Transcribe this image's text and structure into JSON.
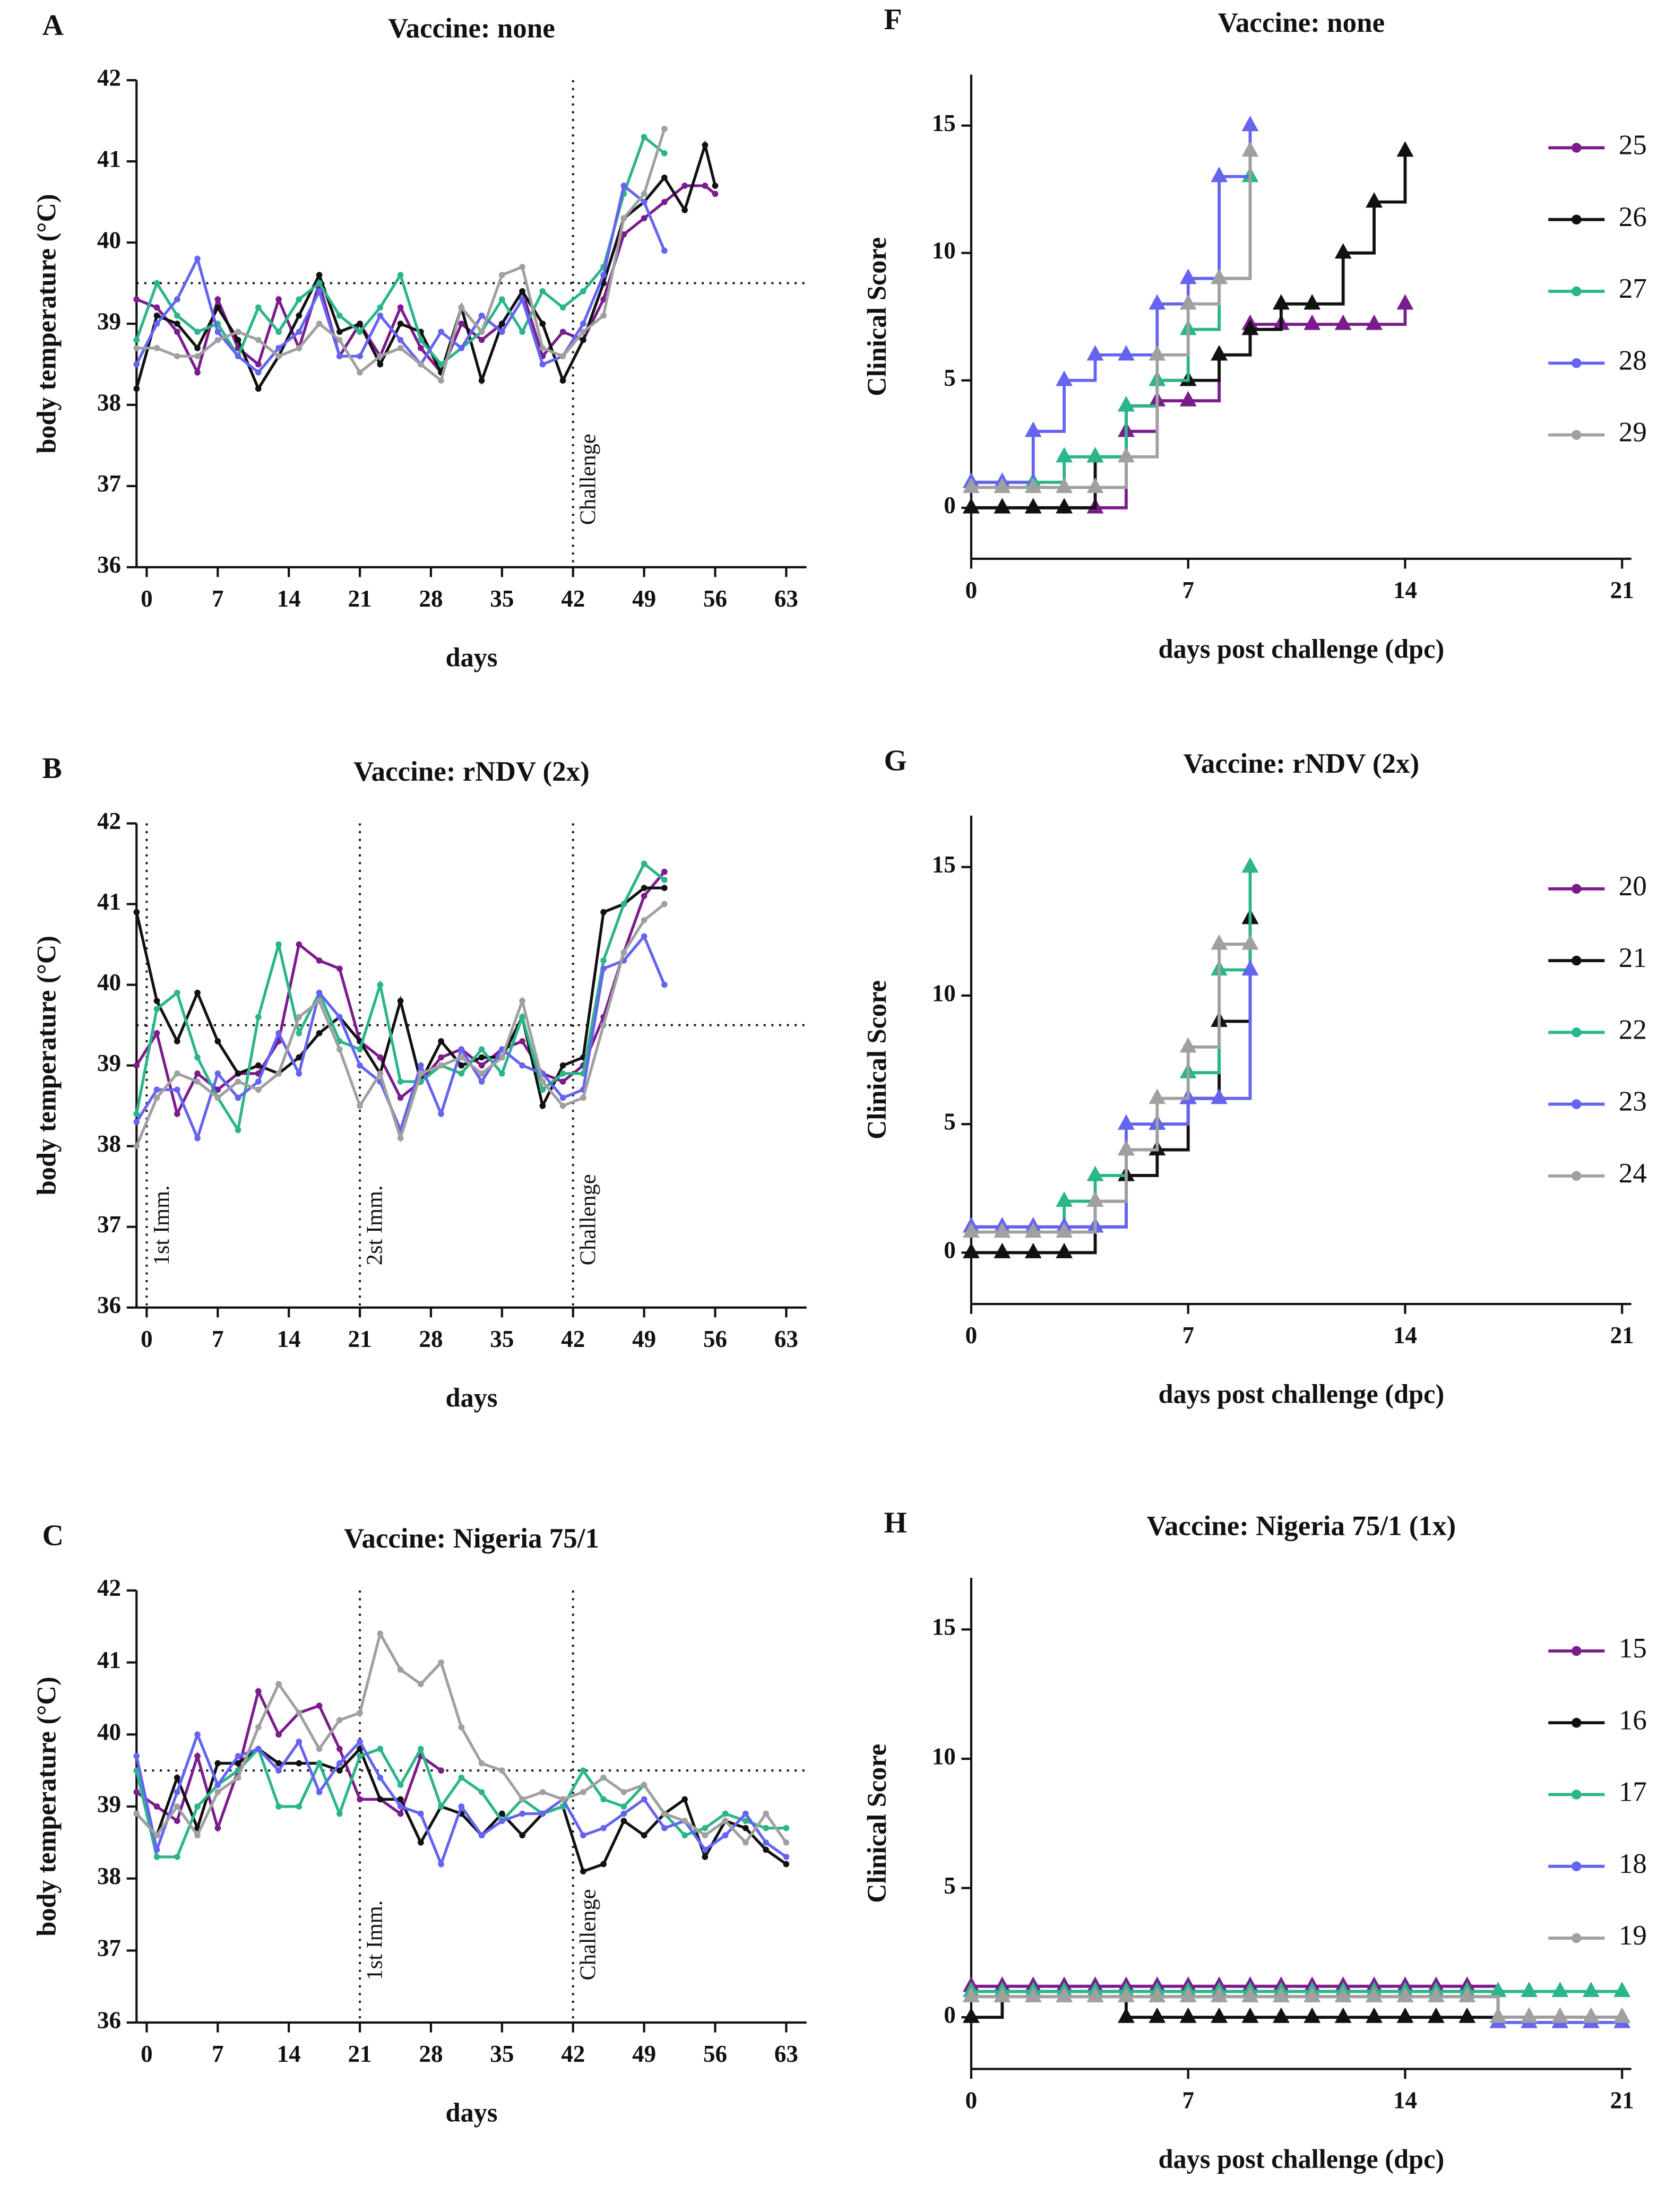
{
  "chart_data": [
    {
      "type": "line",
      "panel": "A",
      "title": "Vaccine: none",
      "xlabel": "days",
      "ylabel": "body temperature (°C)",
      "xlim": [
        -1,
        65
      ],
      "ylim": [
        36,
        42
      ],
      "xticks": [
        0,
        7,
        14,
        21,
        28,
        35,
        42,
        49,
        56,
        63
      ],
      "yticks": [
        36,
        37,
        38,
        39,
        40,
        41,
        42
      ],
      "hline": 39.5,
      "vlines": [
        {
          "value": 42,
          "label": "Challenge"
        }
      ],
      "x": [
        -1,
        1,
        3,
        5,
        7,
        9,
        11,
        13,
        15,
        17,
        19,
        21,
        23,
        25,
        27,
        29,
        31,
        33,
        35,
        37,
        39,
        41,
        43,
        45,
        47,
        49,
        51,
        53,
        55,
        56
      ],
      "series": [
        {
          "color": "#7b1c8c",
          "values": [
            39.3,
            39.2,
            38.9,
            38.4,
            39.3,
            38.7,
            38.5,
            39.3,
            38.7,
            39.5,
            38.6,
            39.0,
            38.6,
            39.2,
            38.7,
            38.4,
            39.0,
            38.8,
            39.0,
            39.4,
            38.6,
            38.9,
            38.8,
            39.3,
            40.1,
            40.3,
            40.5,
            40.7,
            40.7,
            40.6
          ]
        },
        {
          "color": "#111111",
          "values": [
            38.2,
            39.1,
            39.0,
            38.7,
            39.2,
            38.8,
            38.2,
            38.6,
            39.1,
            39.6,
            38.9,
            39.0,
            38.5,
            39.0,
            38.9,
            38.4,
            39.2,
            38.3,
            39.0,
            39.4,
            39.0,
            38.3,
            38.8,
            39.5,
            40.3,
            40.5,
            40.8,
            40.4,
            41.2,
            40.7
          ]
        },
        {
          "color": "#2bb58a",
          "values": [
            38.8,
            39.5,
            39.1,
            38.9,
            39.0,
            38.6,
            39.2,
            38.9,
            39.3,
            39.5,
            39.1,
            38.9,
            39.2,
            39.6,
            38.8,
            38.5,
            38.7,
            38.9,
            39.3,
            38.9,
            39.4,
            39.2,
            39.4,
            39.7,
            40.6,
            41.3,
            41.1,
            null,
            null,
            null
          ]
        },
        {
          "color": "#6464f0",
          "values": [
            38.5,
            39.0,
            39.3,
            39.8,
            38.9,
            38.6,
            38.4,
            38.7,
            38.9,
            39.4,
            38.6,
            38.6,
            39.1,
            38.8,
            38.5,
            38.9,
            38.7,
            39.1,
            38.9,
            39.3,
            38.5,
            38.6,
            39.0,
            39.6,
            40.7,
            40.5,
            39.9,
            null,
            null,
            null
          ]
        },
        {
          "color": "#a0a0a0",
          "values": [
            38.7,
            38.7,
            38.6,
            38.6,
            38.8,
            38.9,
            38.8,
            38.6,
            38.7,
            39.0,
            38.8,
            38.4,
            38.6,
            38.7,
            38.5,
            38.3,
            39.2,
            38.9,
            39.6,
            39.7,
            38.7,
            38.6,
            38.9,
            39.1,
            40.3,
            40.6,
            41.4,
            null,
            null,
            null
          ]
        }
      ]
    },
    {
      "type": "line",
      "panel": "B",
      "title": "Vaccine: rNDV (2x)",
      "xlabel": "days",
      "ylabel": "body temperature (°C)",
      "xlim": [
        -1,
        65
      ],
      "ylim": [
        36,
        42
      ],
      "xticks": [
        0,
        7,
        14,
        21,
        28,
        35,
        42,
        49,
        56,
        63
      ],
      "yticks": [
        36,
        37,
        38,
        39,
        40,
        41,
        42
      ],
      "hline": 39.5,
      "vlines": [
        {
          "value": 0,
          "label": "1st Imm."
        },
        {
          "value": 21,
          "label": "2st Imm."
        },
        {
          "value": 42,
          "label": "Challenge"
        }
      ],
      "x": [
        -1,
        1,
        3,
        5,
        7,
        9,
        11,
        13,
        15,
        17,
        19,
        21,
        23,
        25,
        27,
        29,
        31,
        33,
        35,
        37,
        39,
        41,
        43,
        45,
        47,
        49,
        51
      ],
      "series": [
        {
          "color": "#7b1c8c",
          "values": [
            39.0,
            39.4,
            38.4,
            38.9,
            38.7,
            38.9,
            38.9,
            39.3,
            40.5,
            40.3,
            40.2,
            39.3,
            39.1,
            38.6,
            38.8,
            39.1,
            39.2,
            39.0,
            39.2,
            39.3,
            38.9,
            38.8,
            39.0,
            39.6,
            40.4,
            41.1,
            41.4
          ]
        },
        {
          "color": "#111111",
          "values": [
            40.9,
            39.8,
            39.3,
            39.9,
            39.3,
            38.9,
            39.0,
            38.9,
            39.1,
            39.4,
            39.6,
            39.3,
            38.9,
            39.8,
            38.8,
            39.3,
            39.0,
            39.1,
            39.1,
            39.6,
            38.5,
            39.0,
            39.1,
            40.9,
            41.0,
            41.2,
            41.2
          ]
        },
        {
          "color": "#2bb58a",
          "values": [
            38.4,
            39.7,
            39.9,
            39.1,
            38.6,
            38.2,
            39.6,
            40.5,
            39.4,
            39.9,
            39.3,
            39.2,
            40.0,
            38.8,
            38.8,
            39.0,
            38.9,
            39.2,
            38.9,
            39.6,
            38.7,
            38.9,
            38.9,
            40.3,
            41.0,
            41.5,
            41.3
          ]
        },
        {
          "color": "#6464f0",
          "values": [
            38.3,
            38.7,
            38.7,
            38.1,
            38.9,
            38.6,
            38.8,
            39.4,
            38.9,
            39.9,
            39.6,
            39.0,
            38.8,
            38.2,
            39.0,
            38.4,
            39.2,
            38.8,
            39.2,
            39.0,
            38.9,
            38.6,
            38.7,
            40.2,
            40.3,
            40.6,
            40.0
          ]
        },
        {
          "color": "#a0a0a0",
          "values": [
            38.0,
            38.6,
            38.9,
            38.8,
            38.6,
            38.8,
            38.7,
            38.9,
            39.6,
            39.8,
            39.2,
            38.5,
            38.9,
            38.1,
            38.9,
            39.0,
            39.1,
            38.9,
            39.1,
            39.8,
            38.8,
            38.5,
            38.6,
            39.5,
            40.4,
            40.8,
            41.0
          ]
        }
      ]
    },
    {
      "type": "line",
      "panel": "C",
      "title": "Vaccine: Nigeria 75/1",
      "xlabel": "days",
      "ylabel": "body temperature (°C)",
      "xlim": [
        -1,
        65
      ],
      "ylim": [
        36,
        42
      ],
      "xticks": [
        0,
        7,
        14,
        21,
        28,
        35,
        42,
        49,
        56,
        63
      ],
      "yticks": [
        36,
        37,
        38,
        39,
        40,
        41,
        42
      ],
      "hline": 39.5,
      "vlines": [
        {
          "value": 21,
          "label": "1st Imm."
        },
        {
          "value": 42,
          "label": "Challenge"
        }
      ],
      "x": [
        -1,
        1,
        3,
        5,
        7,
        9,
        11,
        13,
        15,
        17,
        19,
        21,
        23,
        25,
        27,
        29,
        31,
        33,
        35,
        37,
        39,
        41,
        43,
        45,
        47,
        49,
        51,
        53,
        55,
        57,
        59,
        61,
        63
      ],
      "series": [
        {
          "color": "#7b1c8c",
          "values": [
            39.2,
            39.0,
            38.8,
            39.7,
            38.7,
            39.5,
            40.6,
            40.0,
            40.3,
            40.4,
            39.8,
            39.1,
            39.1,
            38.9,
            39.7,
            39.5,
            null,
            null,
            null,
            null,
            null,
            null,
            null,
            null,
            null,
            null,
            null,
            null,
            null,
            null,
            null,
            null,
            null
          ]
        },
        {
          "color": "#111111",
          "values": [
            38.9,
            38.6,
            39.4,
            38.7,
            39.6,
            39.6,
            39.8,
            39.6,
            39.6,
            39.6,
            39.5,
            39.8,
            39.1,
            39.1,
            38.5,
            39.0,
            38.9,
            38.6,
            38.9,
            38.6,
            38.9,
            39.0,
            38.1,
            38.2,
            38.8,
            38.6,
            38.9,
            39.1,
            38.3,
            38.8,
            38.7,
            38.4,
            38.2
          ]
        },
        {
          "color": "#2bb58a",
          "values": [
            39.5,
            38.3,
            38.3,
            39.0,
            39.3,
            39.5,
            39.8,
            39.0,
            39.0,
            39.6,
            38.9,
            39.7,
            39.8,
            39.3,
            39.8,
            39.0,
            39.4,
            39.2,
            38.8,
            39.1,
            38.9,
            39.0,
            39.5,
            39.1,
            39.0,
            39.3,
            38.9,
            38.6,
            38.7,
            38.9,
            38.8,
            38.7,
            38.7
          ]
        },
        {
          "color": "#6464f0",
          "values": [
            39.7,
            38.4,
            39.2,
            40.0,
            39.3,
            39.7,
            39.8,
            39.5,
            39.9,
            39.2,
            39.6,
            39.9,
            39.4,
            39.0,
            38.9,
            38.2,
            39.0,
            38.6,
            38.8,
            38.9,
            38.9,
            39.1,
            38.6,
            38.7,
            38.9,
            39.1,
            38.7,
            38.8,
            38.4,
            38.6,
            38.9,
            38.5,
            38.3
          ]
        },
        {
          "color": "#a0a0a0",
          "values": [
            38.9,
            38.6,
            39.0,
            38.6,
            39.2,
            39.4,
            40.1,
            40.7,
            40.3,
            39.8,
            40.2,
            40.3,
            41.4,
            40.9,
            40.7,
            41.0,
            40.1,
            39.6,
            39.5,
            39.1,
            39.2,
            39.1,
            39.2,
            39.4,
            39.2,
            39.3,
            38.9,
            38.8,
            38.6,
            38.8,
            38.5,
            38.9,
            38.5
          ]
        }
      ]
    },
    {
      "type": "step",
      "panel": "F",
      "title": "Vaccine: none",
      "xlabel": "days post challenge (dpc)",
      "ylabel": "Clinical Score",
      "xlim": [
        0,
        21.3
      ],
      "ylim": [
        -2,
        17
      ],
      "xticks": [
        0,
        7,
        14,
        21
      ],
      "yticks": [
        0,
        5,
        10,
        15
      ],
      "x": [
        0,
        1,
        2,
        3,
        4,
        5,
        6,
        7,
        8,
        9,
        10,
        11,
        12,
        13,
        14
      ],
      "series": [
        {
          "name": "25",
          "color": "#7b1c8c",
          "values": [
            0,
            0,
            0,
            0,
            0,
            3,
            4.2,
            4.2,
            6,
            7.2,
            7.2,
            7.2,
            7.2,
            7.2,
            8
          ]
        },
        {
          "name": "26",
          "color": "#111111",
          "values": [
            0,
            0,
            0,
            0,
            2,
            4,
            5,
            5,
            6,
            7,
            8,
            8,
            10,
            12,
            14
          ]
        },
        {
          "name": "27",
          "color": "#2bb58a",
          "values": [
            1,
            1,
            1,
            2,
            2,
            4,
            5,
            7,
            9,
            13,
            null,
            null,
            null,
            null,
            null
          ]
        },
        {
          "name": "28",
          "color": "#6464f0",
          "values": [
            1,
            1,
            3,
            5,
            6,
            6,
            8,
            9,
            13,
            15,
            null,
            null,
            null,
            null,
            null
          ]
        },
        {
          "name": "29",
          "color": "#a0a0a0",
          "values": [
            0.8,
            0.8,
            0.8,
            0.8,
            0.8,
            2,
            6,
            8,
            9,
            14,
            null,
            null,
            null,
            null,
            null
          ]
        }
      ]
    },
    {
      "type": "step",
      "panel": "G",
      "title": "Vaccine: rNDV (2x)",
      "xlabel": "days post challenge (dpc)",
      "ylabel": "Clinical Score",
      "xlim": [
        0,
        21.3
      ],
      "ylim": [
        -2,
        17
      ],
      "xticks": [
        0,
        7,
        14,
        21
      ],
      "yticks": [
        0,
        5,
        10,
        15
      ],
      "x": [
        0,
        1,
        2,
        3,
        4,
        5,
        6,
        7,
        8,
        9
      ],
      "series": [
        {
          "name": "20",
          "color": "#7b1c8c",
          "values": [
            1,
            1,
            1,
            1,
            2,
            4,
            5,
            6,
            9,
            13
          ]
        },
        {
          "name": "21",
          "color": "#111111",
          "values": [
            0,
            0,
            0,
            0,
            1,
            3,
            4,
            6,
            9,
            13
          ]
        },
        {
          "name": "22",
          "color": "#2bb58a",
          "values": [
            1,
            1,
            1,
            2,
            3,
            4,
            5,
            7,
            11,
            15
          ]
        },
        {
          "name": "23",
          "color": "#6464f0",
          "values": [
            1,
            1,
            1,
            1,
            1,
            5,
            5,
            6,
            6,
            11
          ]
        },
        {
          "name": "24",
          "color": "#a0a0a0",
          "values": [
            0.8,
            0.8,
            0.8,
            0.8,
            2,
            4,
            6,
            8,
            12,
            12
          ]
        }
      ]
    },
    {
      "type": "step",
      "panel": "H",
      "title": "Vaccine: Nigeria 75/1 (1x)",
      "xlabel": "days post challenge (dpc)",
      "ylabel": "Clinical Score",
      "xlim": [
        0,
        21.3
      ],
      "ylim": [
        -2,
        17
      ],
      "xticks": [
        0,
        7,
        14,
        21
      ],
      "yticks": [
        0,
        5,
        10,
        15
      ],
      "x": [
        0,
        1,
        2,
        3,
        4,
        5,
        6,
        7,
        8,
        9,
        10,
        11,
        12,
        13,
        14,
        15,
        16,
        17,
        18,
        19,
        20,
        21
      ],
      "series": [
        {
          "name": "15",
          "color": "#7b1c8c",
          "values": [
            1.2,
            1.2,
            1.2,
            1.2,
            1.2,
            1.2,
            1.2,
            1.2,
            1.2,
            1.2,
            1.2,
            1.2,
            1.2,
            1.2,
            1.2,
            1.2,
            1.2,
            0,
            0,
            0,
            0,
            0
          ]
        },
        {
          "name": "16",
          "color": "#111111",
          "values": [
            0,
            1,
            1,
            1,
            1,
            0,
            0,
            0,
            0,
            0,
            0,
            0,
            0,
            0,
            0,
            0,
            0,
            0,
            0,
            0,
            0,
            0
          ]
        },
        {
          "name": "17",
          "color": "#2bb58a",
          "values": [
            1,
            1,
            1,
            1,
            1,
            1,
            1,
            1,
            1,
            1,
            1,
            1,
            1,
            1,
            1,
            1,
            1,
            1,
            1,
            1,
            1,
            1
          ]
        },
        {
          "name": "18",
          "color": "#6464f0",
          "values": [
            0.8,
            0.8,
            0.8,
            0.8,
            0.8,
            0.8,
            0.8,
            0.8,
            0.8,
            0.8,
            0.8,
            0.8,
            0.8,
            0.8,
            0.8,
            0.8,
            0.8,
            -0.2,
            -0.2,
            -0.2,
            -0.2,
            -0.2
          ]
        },
        {
          "name": "19",
          "color": "#a0a0a0",
          "values": [
            0.8,
            0.8,
            0.8,
            0.8,
            0.8,
            0.8,
            0.8,
            0.8,
            0.8,
            0.8,
            0.8,
            0.8,
            0.8,
            0.8,
            0.8,
            0.8,
            0.8,
            0,
            0,
            0,
            0,
            0
          ]
        }
      ]
    }
  ]
}
